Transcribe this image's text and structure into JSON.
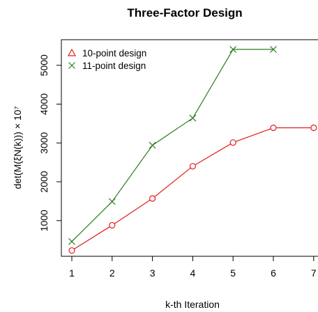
{
  "chart_data": {
    "type": "line",
    "title": "Three-Factor Design",
    "xlabel": "k-th Iteration",
    "ylabel": "det(M(ξN(k))) × 10⁷",
    "x": [
      1,
      2,
      3,
      4,
      5,
      6,
      7
    ],
    "xlim": [
      1,
      7
    ],
    "ylim": [
      0,
      5600
    ],
    "xticks": [
      "1",
      "2",
      "3",
      "4",
      "5",
      "6",
      "7"
    ],
    "yticks": [
      "1000",
      "2000",
      "3000",
      "4000",
      "5000"
    ],
    "grid": false,
    "legend_position": "top-left",
    "series": [
      {
        "name": "10-point design",
        "color": "#e31a1c",
        "marker": "circle",
        "legend_marker": "triangle",
        "x": [
          1,
          2,
          3,
          4,
          5,
          6,
          7
        ],
        "values": [
          230,
          880,
          1570,
          2400,
          3010,
          3390,
          3390
        ]
      },
      {
        "name": "11-point design",
        "color": "#2e7d1f",
        "marker": "x",
        "legend_marker": "x",
        "x": [
          1,
          2,
          3,
          4,
          5,
          6
        ],
        "values": [
          460,
          1490,
          2940,
          3640,
          5410,
          5410
        ]
      }
    ]
  }
}
